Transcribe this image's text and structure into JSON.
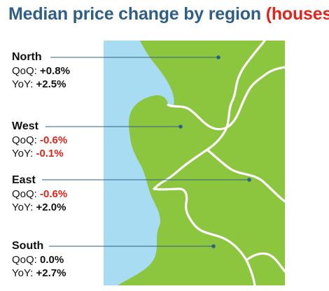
{
  "title": {
    "main": "Median price change by region",
    "highlight": "(houses)"
  },
  "colors": {
    "title": "#2f5f86",
    "highlight": "#e2231a",
    "water": "#a8dcf2",
    "land": "#8cc63f",
    "border": "#ffffff",
    "leader": "#2f5f86",
    "negative": "#e2231a",
    "positive": "#111111"
  },
  "regions": [
    {
      "name": "North",
      "qoq_label": "QoQ:",
      "qoq": "+0.8%",
      "qoq_sign": "pos",
      "yoy_label": "YoY:",
      "yoy": "+2.5%",
      "yoy_sign": "pos"
    },
    {
      "name": "West",
      "qoq_label": "QoQ:",
      "qoq": "-0.6%",
      "qoq_sign": "neg",
      "yoy_label": "YoY:",
      "yoy": "-0.1%",
      "yoy_sign": "neg"
    },
    {
      "name": "East",
      "qoq_label": "QoQ:",
      "qoq": "-0.6%",
      "qoq_sign": "neg",
      "yoy_label": "YoY:",
      "yoy": "+2.0%",
      "yoy_sign": "pos"
    },
    {
      "name": "South",
      "qoq_label": "QoQ:",
      "qoq": "0.0%",
      "qoq_sign": "pos",
      "yoy_label": "YoY:",
      "yoy": "+2.7%",
      "yoy_sign": "pos"
    }
  ]
}
